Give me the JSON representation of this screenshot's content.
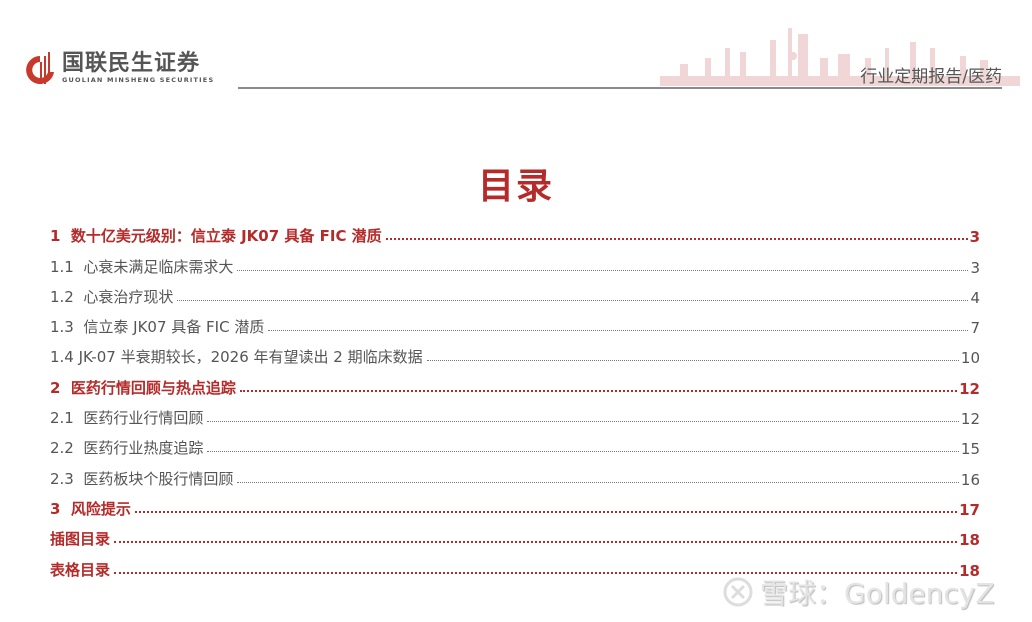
{
  "header": {
    "logo_cn": "国联民生证券",
    "logo_en": "GUOLIAN MINSHENG SECURITIES",
    "report_type": "行业定期报告/医药",
    "brand_color": "#b42b2a"
  },
  "title": "目录",
  "toc": [
    {
      "level": 1,
      "label": "1  数十亿美元级别：信立泰 JK07 具备 FIC 潜质",
      "page": "3"
    },
    {
      "level": 2,
      "label": "1.1  心衰未满足临床需求大",
      "page": "3"
    },
    {
      "level": 2,
      "label": "1.2  心衰治疗现状",
      "page": "4"
    },
    {
      "level": 2,
      "label": "1.3  信立泰 JK07 具备 FIC 潜质",
      "page": "7"
    },
    {
      "level": 2,
      "label": "1.4 JK-07 半衰期较长，2026 年有望读出 2 期临床数据",
      "page": "10"
    },
    {
      "level": 1,
      "label": "2  医药行情回顾与热点追踪",
      "page": "12"
    },
    {
      "level": 2,
      "label": "2.1  医药行业行情回顾",
      "page": "12"
    },
    {
      "level": 2,
      "label": "2.2  医药行业热度追踪",
      "page": "15"
    },
    {
      "level": 2,
      "label": "2.3  医药板块个股行情回顾",
      "page": "16"
    },
    {
      "level": 1,
      "label": "3  风险提示",
      "page": "17"
    },
    {
      "level": 1,
      "label": "插图目录",
      "page": "18"
    },
    {
      "level": 1,
      "label": "表格目录",
      "page": "18"
    }
  ],
  "watermark": "雪球：GoldencyZ"
}
